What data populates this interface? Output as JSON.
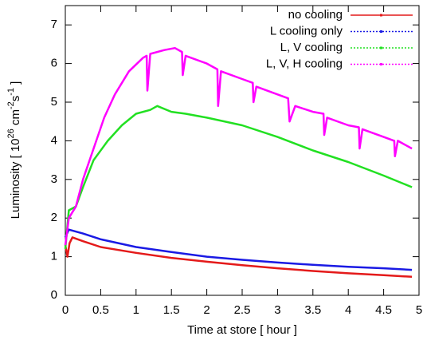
{
  "chart_data": {
    "type": "line",
    "x_label": "Time at store [ hour ]",
    "y_label_parts": [
      "Luminosity [ 10",
      "26",
      " cm",
      "-2",
      "s",
      "-1",
      " ]"
    ],
    "xlim": [
      0,
      5
    ],
    "ylim": [
      0,
      7.5
    ],
    "xticks": [
      0,
      0.5,
      1,
      1.5,
      2,
      2.5,
      3,
      3.5,
      4,
      4.5,
      5
    ],
    "yticks": [
      0,
      1,
      2,
      3,
      4,
      5,
      6,
      7
    ],
    "legend": "top-right",
    "series": [
      {
        "name": "no cooling",
        "color": "#e41a1a",
        "x": [
          0,
          0.03,
          0.06,
          0.1,
          0.25,
          0.5,
          1,
          1.5,
          2,
          2.5,
          3,
          3.5,
          4,
          4.5,
          4.9
        ],
        "values": [
          1.3,
          1.0,
          1.35,
          1.5,
          1.4,
          1.25,
          1.1,
          0.97,
          0.87,
          0.78,
          0.7,
          0.63,
          0.57,
          0.52,
          0.48
        ]
      },
      {
        "name": "L cooling only",
        "color": "#1a1ae4",
        "x": [
          0,
          0.05,
          0.25,
          0.5,
          1,
          1.5,
          2,
          2.5,
          3,
          3.5,
          4,
          4.5,
          4.9
        ],
        "values": [
          1.5,
          1.7,
          1.6,
          1.45,
          1.25,
          1.12,
          1.0,
          0.92,
          0.85,
          0.79,
          0.74,
          0.7,
          0.66
        ]
      },
      {
        "name": "L, V cooling",
        "color": "#22e022",
        "x": [
          0,
          0.05,
          0.15,
          0.25,
          0.4,
          0.6,
          0.8,
          1.0,
          1.2,
          1.3,
          1.5,
          1.7,
          2.0,
          2.5,
          3.0,
          3.5,
          4.0,
          4.5,
          4.9
        ],
        "values": [
          1.2,
          2.2,
          2.3,
          2.8,
          3.5,
          4.0,
          4.4,
          4.7,
          4.8,
          4.9,
          4.75,
          4.7,
          4.6,
          4.4,
          4.1,
          3.75,
          3.45,
          3.1,
          2.8
        ]
      },
      {
        "name": "L, V, H cooling",
        "color": "#ff00ff",
        "x": [
          0,
          0.05,
          0.15,
          0.25,
          0.4,
          0.55,
          0.7,
          0.9,
          1.1,
          1.15,
          1.16,
          1.2,
          1.4,
          1.55,
          1.65,
          1.66,
          1.7,
          2.0,
          2.15,
          2.16,
          2.2,
          2.5,
          2.65,
          2.66,
          2.7,
          3.0,
          3.15,
          3.17,
          3.25,
          3.5,
          3.65,
          3.66,
          3.7,
          4.0,
          4.15,
          4.16,
          4.2,
          4.5,
          4.65,
          4.66,
          4.7,
          4.9
        ],
        "values": [
          1.3,
          2.0,
          2.3,
          3.0,
          3.8,
          4.6,
          5.2,
          5.8,
          6.15,
          6.2,
          5.3,
          6.25,
          6.35,
          6.4,
          6.3,
          5.7,
          6.2,
          6.0,
          5.85,
          4.9,
          5.8,
          5.6,
          5.5,
          5.0,
          5.4,
          5.2,
          5.1,
          4.5,
          4.9,
          4.75,
          4.7,
          4.15,
          4.6,
          4.4,
          4.35,
          3.8,
          4.3,
          4.1,
          4.0,
          3.6,
          4.0,
          3.8
        ]
      }
    ]
  }
}
